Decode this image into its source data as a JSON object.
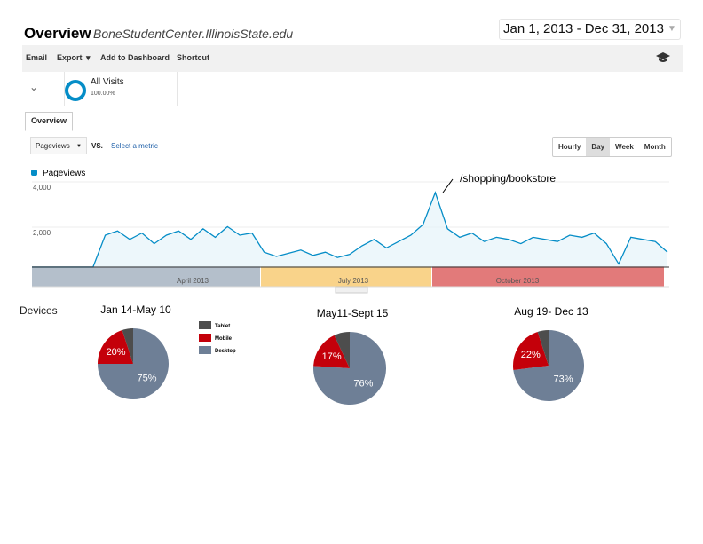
{
  "header": {
    "title": "Overview",
    "site": "BoneStudentCenter.IllinoisState.edu",
    "date_range": "Jan 1, 2013 - Dec 31, 2013"
  },
  "toolbar": {
    "email": "Email",
    "export": "Export",
    "add_dashboard": "Add to Dashboard",
    "shortcut": "Shortcut",
    "icon": "graduation-cap-icon"
  },
  "segment": {
    "name": "All Visits",
    "percent": "100.00%"
  },
  "tabs": {
    "overview": "Overview"
  },
  "controls": {
    "metric": "Pageviews",
    "vs": "VS.",
    "select_metric": "Select a metric",
    "intervals": [
      "Hourly",
      "Day",
      "Week",
      "Month"
    ],
    "active_interval": "Day"
  },
  "colors": {
    "line": "#058dc7",
    "fill": "#e6f3fa",
    "april": "#b4bfcb",
    "july": "#f9d38a",
    "october": "#e27a7a",
    "tablet": "#4d4d4d",
    "mobile": "#c4000a",
    "desktop": "#6e7f96"
  },
  "chart_data": [
    {
      "type": "line",
      "legend": "Pageviews",
      "annotation": "/shopping/bookstore",
      "y_ticks": [
        "4,000",
        "2,000"
      ],
      "ylim": [
        0,
        4000
      ],
      "x_start": "2013-01-01",
      "x_step_days": 7,
      "values": [
        0,
        0,
        0,
        0,
        0,
        0,
        1500,
        1700,
        1300,
        1600,
        1100,
        1500,
        1700,
        1300,
        1800,
        1400,
        1900,
        1500,
        1600,
        700,
        500,
        650,
        800,
        550,
        700,
        450,
        600,
        1000,
        1300,
        900,
        1200,
        1500,
        2000,
        3500,
        1800,
        1400,
        1600,
        1200,
        1400,
        1300,
        1100,
        1400,
        1300,
        1200,
        1500,
        1400,
        1600,
        1100,
        150,
        1400,
        1300,
        1200,
        700
      ],
      "timeline_labels": [
        "April 2013",
        "July 2013",
        "October 2013"
      ]
    },
    {
      "type": "pie",
      "title": "Jan 14-May 10",
      "slices": [
        {
          "name": "Tablet",
          "value": 5
        },
        {
          "name": "Mobile",
          "value": 20,
          "label": "20%"
        },
        {
          "name": "Desktop",
          "value": 75,
          "label": "75%"
        }
      ]
    },
    {
      "type": "pie",
      "title": "May11-Sept 15",
      "slices": [
        {
          "name": "Tablet",
          "value": 7
        },
        {
          "name": "Mobile",
          "value": 17,
          "label": "17%"
        },
        {
          "name": "Desktop",
          "value": 76,
          "label": "76%"
        }
      ]
    },
    {
      "type": "pie",
      "title": "Aug 19- Dec 13",
      "slices": [
        {
          "name": "Tablet",
          "value": 5
        },
        {
          "name": "Mobile",
          "value": 22,
          "label": "22%"
        },
        {
          "name": "Desktop",
          "value": 73,
          "label": "73%"
        }
      ]
    }
  ],
  "devices": {
    "label": "Devices",
    "legend": [
      "Tablet",
      "Mobile",
      "Desktop"
    ]
  }
}
